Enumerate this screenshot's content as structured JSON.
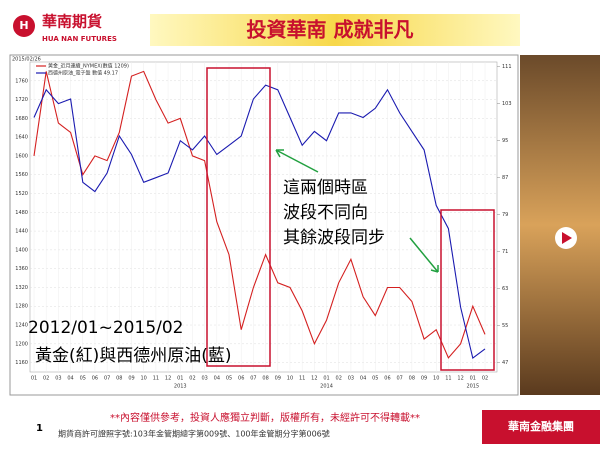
{
  "header": {
    "logo": "華南期貨",
    "logo_en": "HUA NAN FUTURES",
    "title": "投資華南  成就非凡"
  },
  "chart_data": {
    "type": "line",
    "date": "2015/02/26",
    "categories": [
      "01",
      "02",
      "03",
      "04",
      "05",
      "06",
      "07",
      "08",
      "09",
      "10",
      "11",
      "12",
      "01",
      "02",
      "03",
      "04",
      "05",
      "06",
      "07",
      "08",
      "09",
      "10",
      "11",
      "12",
      "01",
      "02",
      "03",
      "04",
      "05",
      "06",
      "07",
      "08",
      "09",
      "10",
      "11",
      "12",
      "01",
      "02"
    ],
    "year_labels": [
      {
        "label": "2013",
        "category": 12
      },
      {
        "label": "2014",
        "category": 24
      },
      {
        "label": "2015",
        "category": 36
      }
    ],
    "series": [
      {
        "name": "黃金_近月連續_NYMEX(數值 1209)",
        "color": "#d42020",
        "axis": "y",
        "values": [
          1600,
          1780,
          1670,
          1650,
          1560,
          1600,
          1590,
          1650,
          1770,
          1780,
          1720,
          1670,
          1680,
          1600,
          1590,
          1460,
          1390,
          1230,
          1320,
          1390,
          1330,
          1320,
          1270,
          1200,
          1250,
          1330,
          1380,
          1300,
          1260,
          1320,
          1320,
          1290,
          1210,
          1230,
          1170,
          1200,
          1280,
          1220
        ]
      },
      {
        "name": "西德州原油_電子盤  數值 49.17",
        "color": "#1a1ab0",
        "axis": "y2",
        "values": [
          100,
          106,
          103,
          104,
          86,
          84,
          88,
          96,
          92,
          86,
          87,
          88,
          95,
          93,
          96,
          92,
          94,
          96,
          104,
          107,
          106,
          100,
          94,
          97,
          95,
          101,
          101,
          100,
          102,
          106,
          101,
          97,
          93,
          81,
          76,
          59,
          48,
          50
        ]
      }
    ],
    "ylim": [
      1140,
      1800
    ],
    "yticks": [
      1160,
      1200,
      1240,
      1280,
      1320,
      1360,
      1400,
      1440,
      1480,
      1520,
      1560,
      1600,
      1640,
      1680,
      1720,
      1760
    ],
    "y2lim": [
      45,
      112
    ],
    "y2ticks": [
      47,
      55,
      63,
      71,
      79,
      87,
      95,
      103,
      111
    ],
    "annotations": [
      "這兩個時區",
      "波段不同向",
      "其餘波段同步",
      "2012/01~2015/02",
      "黃金(紅)與西德州原油(藍)"
    ]
  },
  "footer": {
    "page": "1",
    "disclaimer": "**內容僅供參考，投資人應獨立判斷，版權所有，未經許可不得轉載**",
    "license": "期貨商許可證照字號:103年金管期總字第009號、100年金管期分字第006號",
    "group": "華南金融集團"
  }
}
